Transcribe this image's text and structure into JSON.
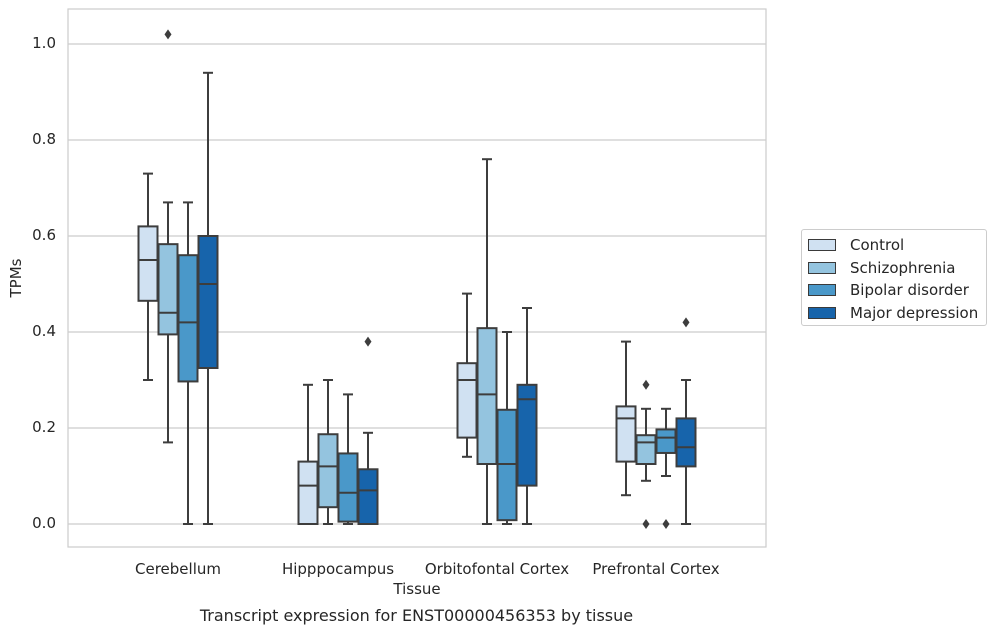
{
  "chart_data": {
    "type": "boxplot",
    "title": "Transcript expression for ENST00000456353 by tissue",
    "xlabel": "Tissue",
    "ylabel": "TPMs",
    "ylim": [
      -0.05,
      1.07
    ],
    "yticks": [
      0.0,
      0.2,
      0.4,
      0.6,
      0.8,
      1.0
    ],
    "ytick_labels": [
      "0.0",
      "0.2",
      "0.4",
      "0.6",
      "0.8",
      "1.0"
    ],
    "grid": true,
    "legend_position": "right-outside",
    "categories": [
      "Cerebellum",
      "Hipppocampus",
      "Orbitofontal Cortex",
      "Prefrontal Cortex"
    ],
    "series": [
      {
        "name": "Control",
        "color": "#d0e1f2",
        "boxes": [
          {
            "whislo": 0.3,
            "q1": 0.465,
            "med": 0.55,
            "q3": 0.62,
            "whishi": 0.73,
            "fliers": []
          },
          {
            "whislo": 0.0,
            "q1": 0.0,
            "med": 0.08,
            "q3": 0.13,
            "whishi": 0.29,
            "fliers": []
          },
          {
            "whislo": 0.14,
            "q1": 0.18,
            "med": 0.3,
            "q3": 0.335,
            "whishi": 0.48,
            "fliers": []
          },
          {
            "whislo": 0.06,
            "q1": 0.13,
            "med": 0.22,
            "q3": 0.245,
            "whishi": 0.38,
            "fliers": []
          }
        ]
      },
      {
        "name": "Schizophrenia",
        "color": "#94c4df",
        "boxes": [
          {
            "whislo": 0.17,
            "q1": 0.395,
            "med": 0.44,
            "q3": 0.583,
            "whishi": 0.67,
            "fliers": [
              1.02
            ]
          },
          {
            "whislo": 0.0,
            "q1": 0.035,
            "med": 0.12,
            "q3": 0.187,
            "whishi": 0.3,
            "fliers": []
          },
          {
            "whislo": 0.0,
            "q1": 0.125,
            "med": 0.27,
            "q3": 0.408,
            "whishi": 0.76,
            "fliers": []
          },
          {
            "whislo": 0.09,
            "q1": 0.125,
            "med": 0.17,
            "q3": 0.185,
            "whishi": 0.24,
            "fliers": [
              0.29,
              0.0
            ]
          }
        ]
      },
      {
        "name": "Bipolar disorder",
        "color": "#4a98c9",
        "boxes": [
          {
            "whislo": 0.0,
            "q1": 0.297,
            "med": 0.42,
            "q3": 0.56,
            "whishi": 0.67,
            "fliers": []
          },
          {
            "whislo": 0.0,
            "q1": 0.005,
            "med": 0.065,
            "q3": 0.147,
            "whishi": 0.27,
            "fliers": []
          },
          {
            "whislo": 0.0,
            "q1": 0.008,
            "med": 0.125,
            "q3": 0.238,
            "whishi": 0.4,
            "fliers": []
          },
          {
            "whislo": 0.1,
            "q1": 0.148,
            "med": 0.18,
            "q3": 0.197,
            "whishi": 0.24,
            "fliers": [
              0.0
            ]
          }
        ]
      },
      {
        "name": "Major depression",
        "color": "#1764ab",
        "boxes": [
          {
            "whislo": 0.0,
            "q1": 0.325,
            "med": 0.5,
            "q3": 0.6,
            "whishi": 0.94,
            "fliers": []
          },
          {
            "whislo": 0.0,
            "q1": 0.0,
            "med": 0.07,
            "q3": 0.114,
            "whishi": 0.19,
            "fliers": [
              0.38
            ]
          },
          {
            "whislo": 0.0,
            "q1": 0.08,
            "med": 0.26,
            "q3": 0.29,
            "whishi": 0.45,
            "fliers": []
          },
          {
            "whislo": 0.0,
            "q1": 0.12,
            "med": 0.16,
            "q3": 0.22,
            "whishi": 0.3,
            "fliers": [
              0.42
            ]
          }
        ]
      }
    ]
  }
}
